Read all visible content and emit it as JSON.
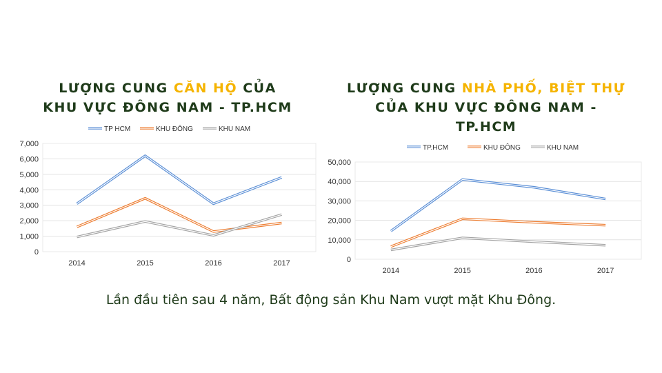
{
  "chart_data": [
    {
      "type": "line",
      "title_parts": [
        "LƯỢNG CUNG ",
        "CĂN HỘ",
        " CỦA KHU VỰC ĐÔNG NAM - TP.HCM"
      ],
      "categories": [
        "2014",
        "2015",
        "2016",
        "2017"
      ],
      "series": [
        {
          "name": "TP HCM",
          "values": [
            3100,
            6200,
            3100,
            4800
          ],
          "color": "#5b8fd6"
        },
        {
          "name": "KHU ĐÔNG",
          "values": [
            1600,
            3450,
            1300,
            1850
          ],
          "color": "#ed7d31"
        },
        {
          "name": "KHU NAM",
          "values": [
            950,
            1950,
            1050,
            2400
          ],
          "color": "#a5a5a5"
        }
      ],
      "ylim": [
        0,
        7000
      ],
      "yticks": [
        "0",
        "1,000",
        "2,000",
        "3,000",
        "4,000",
        "5,000",
        "6,000",
        "7,000"
      ],
      "grid": true,
      "legend": "top"
    },
    {
      "type": "line",
      "title_parts": [
        "LƯỢNG CUNG ",
        "NHÀ PHỐ, BIỆT THỰ",
        " CỦA KHU VỰC ĐÔNG NAM - TP.HCM"
      ],
      "categories": [
        "2014",
        "2015",
        "2016",
        "2017"
      ],
      "series": [
        {
          "name": "TP.HCM",
          "values": [
            14500,
            41000,
            37000,
            31000
          ],
          "color": "#5b8fd6"
        },
        {
          "name": "KHU ĐÔNG",
          "values": [
            6500,
            20800,
            19000,
            17500
          ],
          "color": "#ed7d31"
        },
        {
          "name": "KHU NAM",
          "values": [
            4800,
            11000,
            9000,
            7200
          ],
          "color": "#a5a5a5"
        }
      ],
      "ylim": [
        0,
        50000
      ],
      "yticks": [
        "0",
        "10,000",
        "20,000",
        "30,000",
        "40,000",
        "50,000"
      ],
      "grid": true,
      "legend": "top"
    }
  ],
  "caption": "Lần đầu tiên sau 4 năm, Bất động sản Khu Nam vượt mặt Khu Đông."
}
